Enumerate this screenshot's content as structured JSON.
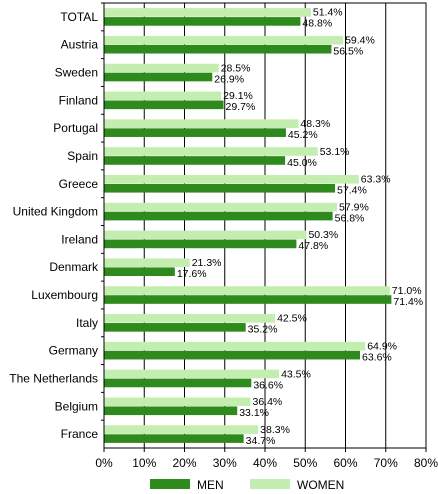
{
  "chart_data": {
    "type": "bar",
    "orientation": "horizontal",
    "categories": [
      "TOTAL",
      "Austria",
      "Sweden",
      "Finland",
      "Portugal",
      "Spain",
      "Greece",
      "United Kingdom",
      "Ireland",
      "Denmark",
      "Luxembourg",
      "Italy",
      "Germany",
      "The Netherlands",
      "Belgium",
      "France"
    ],
    "series": [
      {
        "name": "WOMEN",
        "color": "#c4eeb0",
        "values": [
          51.4,
          59.4,
          28.5,
          29.1,
          48.3,
          53.1,
          63.3,
          57.9,
          50.3,
          21.3,
          71.0,
          42.5,
          64.9,
          43.5,
          36.4,
          38.3
        ],
        "labels": [
          "51.4%",
          "59.4%",
          "28.5%",
          "29.1%",
          "48.3%",
          "53.1%",
          "63.3%",
          "57.9%",
          "50.3%",
          "21.3%",
          "71.0%",
          "42.5%",
          "64.9%",
          "43.5%",
          "36.4%",
          "38.3%"
        ]
      },
      {
        "name": "MEN",
        "color": "#2f8a1e",
        "values": [
          48.8,
          56.5,
          26.9,
          29.7,
          45.2,
          45.0,
          57.4,
          56.8,
          47.8,
          17.6,
          71.4,
          35.2,
          63.6,
          36.6,
          33.1,
          34.7
        ],
        "labels": [
          "48.8%",
          "56.5%",
          "26.9%",
          "29.7%",
          "45.2%",
          "45.0%",
          "57.4%",
          "56.8%",
          "47.8%",
          "17.6%",
          "71.4%",
          "35.2%",
          "63.6%",
          "36.6%",
          "33.1%",
          "34.7%"
        ]
      }
    ],
    "xlim": [
      0,
      80
    ],
    "xticks": [
      "0%",
      "10%",
      "20%",
      "30%",
      "40%",
      "50%",
      "60%",
      "70%",
      "80%"
    ],
    "grid": "vertical",
    "legend": {
      "position": "bottom",
      "items": [
        {
          "name": "MEN",
          "color": "#2f8a1e"
        },
        {
          "name": "WOMEN",
          "color": "#c4eeb0"
        }
      ]
    }
  }
}
